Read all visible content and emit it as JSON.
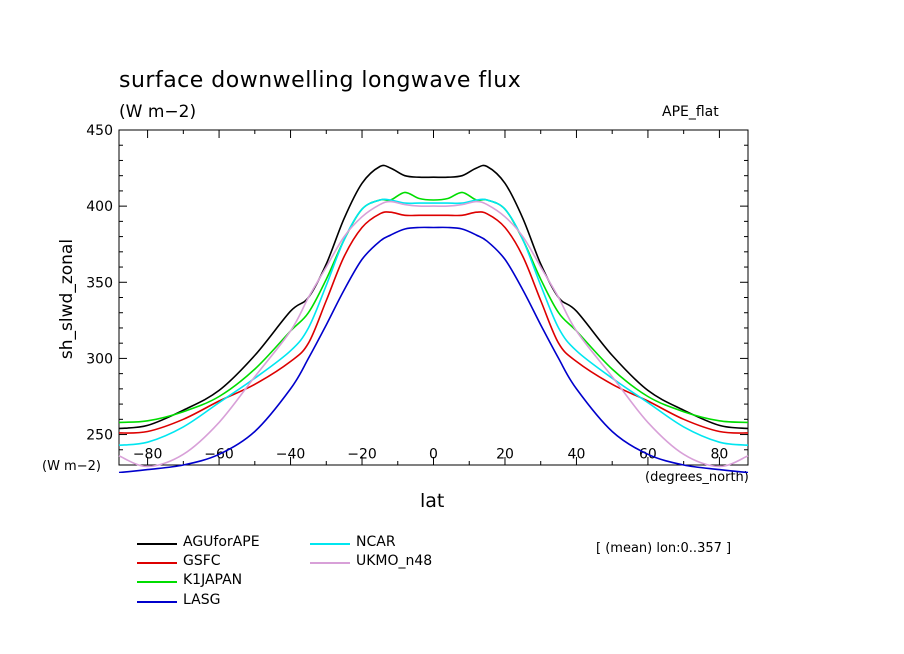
{
  "title": "surface downwelling longwave flux",
  "units_top": "(W m−2)",
  "experiment": "APE_flat",
  "units_left": "(W m−2)",
  "units_right": "(degrees_north)",
  "note": "[ (mean) lon:0..357 ]",
  "chart_data": {
    "type": "line",
    "title": "surface downwelling longwave flux",
    "xlabel": "lat",
    "ylabel": "sh_slwd_zonal",
    "xlim": [
      -88,
      88
    ],
    "ylim": [
      230,
      450
    ],
    "xticks": [
      "−80",
      "−60",
      "−40",
      "−20",
      "0",
      "20",
      "40",
      "60",
      "80"
    ],
    "xtick_values": [
      -80,
      -60,
      -40,
      -20,
      0,
      20,
      40,
      60,
      80
    ],
    "yticks": [
      "250",
      "300",
      "350",
      "400",
      "450"
    ],
    "ytick_values": [
      250,
      300,
      350,
      400,
      450
    ],
    "grid": false,
    "legend_position": "bottom-left",
    "x": [
      -88,
      -80,
      -70,
      -60,
      -50,
      -40,
      -35,
      -30,
      -25,
      -20,
      -15,
      -12,
      -8,
      -4,
      0,
      4,
      8,
      12,
      15,
      20,
      25,
      30,
      35,
      40,
      50,
      60,
      70,
      80,
      88
    ],
    "series": [
      {
        "name": "AGUforAPE",
        "color": "#000000",
        "values": [
          254,
          256,
          266,
          279,
          302,
          331,
          340,
          362,
          392,
          415,
          426,
          425,
          420,
          419,
          419,
          419,
          420,
          425,
          426,
          415,
          392,
          362,
          340,
          331,
          302,
          279,
          266,
          256,
          254
        ]
      },
      {
        "name": "GSFC",
        "color": "#dd0000",
        "values": [
          251,
          252,
          260,
          272,
          283,
          298,
          310,
          338,
          367,
          386,
          395,
          396,
          394,
          394,
          394,
          394,
          394,
          396,
          395,
          386,
          367,
          338,
          310,
          298,
          283,
          272,
          260,
          252,
          251
        ]
      },
      {
        "name": "K1JAPAN",
        "color": "#00dd00",
        "values": [
          258,
          259,
          265,
          275,
          293,
          318,
          330,
          352,
          378,
          398,
          404,
          404,
          409,
          405,
          404,
          405,
          409,
          404,
          404,
          398,
          378,
          352,
          330,
          318,
          293,
          275,
          265,
          259,
          258
        ]
      },
      {
        "name": "LASG",
        "color": "#0000cc",
        "values": [
          225,
          227,
          230,
          237,
          252,
          280,
          300,
          322,
          345,
          365,
          377,
          381,
          385,
          386,
          386,
          386,
          385,
          381,
          377,
          365,
          345,
          322,
          300,
          280,
          252,
          237,
          230,
          227,
          225
        ]
      },
      {
        "name": "NCAR",
        "color": "#00e6f0",
        "values": [
          243,
          245,
          255,
          271,
          287,
          305,
          320,
          348,
          378,
          398,
          404,
          404,
          402,
          402,
          402,
          402,
          402,
          404,
          404,
          398,
          378,
          348,
          320,
          305,
          287,
          271,
          255,
          245,
          243
        ]
      },
      {
        "name": "UKMO_n48",
        "color": "#d8a0d8",
        "values": [
          236,
          229,
          237,
          258,
          288,
          318,
          340,
          360,
          380,
          393,
          401,
          403,
          401,
          400,
          400,
          400,
          401,
          403,
          401,
          393,
          380,
          360,
          340,
          318,
          288,
          258,
          237,
          229,
          236
        ]
      }
    ]
  }
}
